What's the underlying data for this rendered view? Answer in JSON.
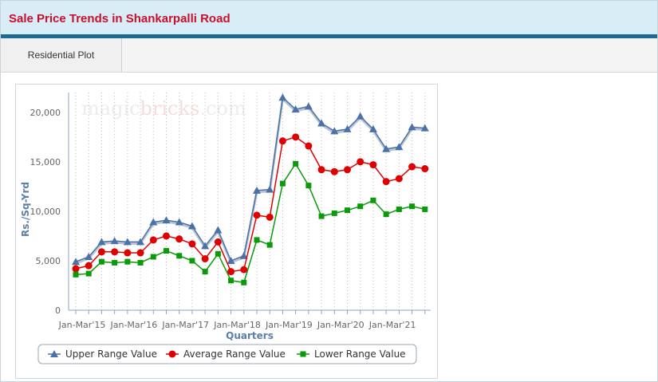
{
  "header": {
    "title": "Sale Price Trends in Shankarpalli Road"
  },
  "tabs": [
    {
      "label": "Residential Plot"
    }
  ],
  "watermark": {
    "part1": "magic",
    "part2": "bricks",
    "part3": ".com"
  },
  "colors": {
    "upper": "#4a72a8",
    "average": "#e00000",
    "lower": "#0a9a0a",
    "title": "#c8102e",
    "header_bg": "#d9edf7",
    "header_border": "#1d6a93"
  },
  "chart_data": {
    "type": "line",
    "xlabel": "Quarters",
    "ylabel": "Rs./Sq-Yrd",
    "ylim": [
      0,
      22000
    ],
    "yticks": [
      0,
      5000,
      10000,
      15000,
      20000
    ],
    "ytick_labels": [
      "0",
      "5,000",
      "10,000",
      "15,000",
      "20,000"
    ],
    "xtick_labels": [
      "Jan-Mar'15",
      "Jan-Mar'16",
      "Jan-Mar'17",
      "Jan-Mar'18",
      "Jan-Mar'19",
      "Jan-Mar'20",
      "Jan-Mar'21"
    ],
    "xtick_positions": [
      0,
      4,
      8,
      12,
      16,
      20,
      24
    ],
    "grid": true,
    "legend_position": "bottom",
    "series": [
      {
        "name": "Upper Range Value",
        "marker": "triangle",
        "color": "#4a72a8",
        "values": [
          4900,
          5400,
          6900,
          7000,
          6900,
          6900,
          8900,
          9100,
          8900,
          8500,
          6500,
          8100,
          5000,
          5500,
          12100,
          12200,
          21500,
          20300,
          20600,
          18900,
          18100,
          18300,
          19600,
          18300,
          16300,
          16500,
          18500,
          18400
        ]
      },
      {
        "name": "Average Range Value",
        "marker": "circle",
        "color": "#e00000",
        "values": [
          4200,
          4500,
          5900,
          5900,
          5800,
          5800,
          7100,
          7500,
          7200,
          6700,
          5200,
          6900,
          3900,
          4100,
          9600,
          9400,
          17100,
          17500,
          16600,
          14200,
          14000,
          14200,
          15000,
          14700,
          13000,
          13300,
          14500,
          14300
        ]
      },
      {
        "name": "Lower Range Value",
        "marker": "square",
        "color": "#0a9a0a",
        "values": [
          3600,
          3700,
          4900,
          4800,
          4900,
          4800,
          5400,
          6000,
          5500,
          5000,
          3900,
          5700,
          3000,
          2800,
          7100,
          6600,
          12800,
          14800,
          12600,
          9500,
          9800,
          10100,
          10500,
          11100,
          9700,
          10200,
          10500,
          10200
        ]
      }
    ]
  }
}
